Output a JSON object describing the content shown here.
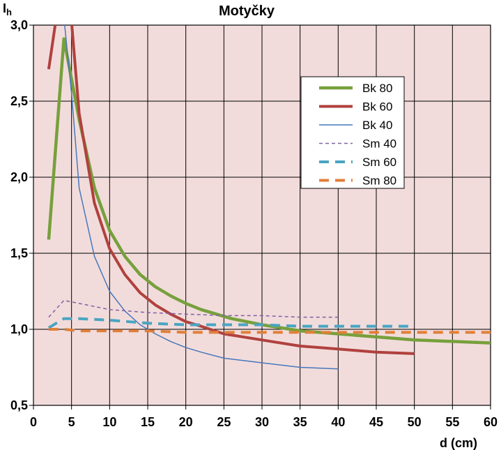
{
  "chart_data": {
    "type": "line",
    "title": "Motyčky",
    "ylabel_main": "I",
    "ylabel_sub": "h",
    "xlabel": "d (cm)",
    "xlim": [
      0,
      60
    ],
    "ylim": [
      0.5,
      3.0
    ],
    "xticks": [
      0,
      5,
      10,
      15,
      20,
      25,
      30,
      35,
      40,
      45,
      50,
      55,
      60
    ],
    "yticks": [
      0.5,
      1.0,
      1.5,
      2.0,
      2.5,
      3.0
    ],
    "ytick_labels": [
      "0,5",
      "1,0",
      "1,5",
      "2,0",
      "2,5",
      "3,0"
    ],
    "grid": true,
    "legend_position": "top-right",
    "colors": {
      "background": "#f2dcdb",
      "grid": "#000000"
    },
    "series": [
      {
        "name": "Bk 80",
        "color": "#77a03c",
        "width": 4.5,
        "dash": "",
        "x": [
          2,
          4,
          6,
          8,
          10,
          12,
          14,
          16,
          18,
          20,
          22,
          24,
          26,
          28,
          30,
          35,
          40,
          45,
          50,
          55,
          60
        ],
        "y": [
          1.59,
          2.91,
          2.38,
          1.93,
          1.65,
          1.48,
          1.36,
          1.28,
          1.22,
          1.17,
          1.13,
          1.1,
          1.07,
          1.05,
          1.03,
          0.99,
          0.97,
          0.95,
          0.93,
          0.92,
          0.91
        ]
      },
      {
        "name": "Bk 60",
        "color": "#b0413e",
        "width": 4,
        "dash": "",
        "x": [
          2,
          3,
          4,
          5,
          6,
          8,
          10,
          12,
          14,
          16,
          18,
          20,
          22,
          25,
          30,
          35,
          40,
          45,
          50
        ],
        "y": [
          2.71,
          3.05,
          3.2,
          3.02,
          2.42,
          1.83,
          1.53,
          1.36,
          1.24,
          1.16,
          1.1,
          1.05,
          1.02,
          0.97,
          0.93,
          0.89,
          0.87,
          0.85,
          0.84
        ]
      },
      {
        "name": "Bk 40",
        "color": "#4677bd",
        "width": 1.5,
        "dash": "",
        "x": [
          2,
          3,
          4,
          5,
          6,
          8,
          10,
          12,
          14,
          16,
          18,
          20,
          22,
          25,
          30,
          35,
          40
        ],
        "y": [
          3.2,
          3.15,
          3.05,
          2.55,
          1.93,
          1.48,
          1.25,
          1.12,
          1.03,
          0.97,
          0.92,
          0.88,
          0.85,
          0.81,
          0.78,
          0.75,
          0.74
        ]
      },
      {
        "name": "Sm 40",
        "color": "#7f62a3",
        "width": 1.5,
        "dash": "5,4",
        "x": [
          2,
          4,
          6,
          10,
          15,
          20,
          25,
          30,
          35,
          40
        ],
        "y": [
          1.08,
          1.19,
          1.17,
          1.13,
          1.11,
          1.1,
          1.09,
          1.09,
          1.08,
          1.08
        ]
      },
      {
        "name": "Sm 60",
        "color": "#4aa5c2",
        "width": 4,
        "dash": "14,9",
        "x": [
          2,
          4,
          6,
          10,
          15,
          20,
          25,
          30,
          35,
          40,
          45,
          50
        ],
        "y": [
          1.01,
          1.07,
          1.07,
          1.06,
          1.04,
          1.03,
          1.03,
          1.03,
          1.02,
          1.02,
          1.02,
          1.02
        ]
      },
      {
        "name": "Sm 80",
        "color": "#e17f39",
        "width": 4,
        "dash": "14,9",
        "x": [
          2,
          4,
          6,
          10,
          15,
          20,
          25,
          30,
          35,
          40,
          45,
          50,
          55,
          60
        ],
        "y": [
          1.0,
          1.0,
          0.99,
          0.99,
          0.99,
          0.98,
          0.98,
          0.98,
          0.98,
          0.98,
          0.98,
          0.98,
          0.98,
          0.98
        ]
      }
    ]
  }
}
